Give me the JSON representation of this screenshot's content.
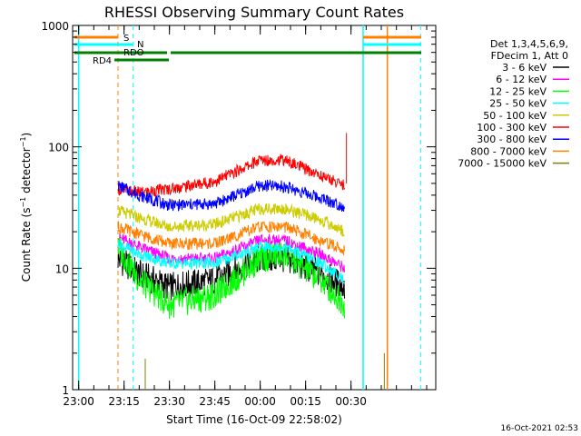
{
  "chart_data": {
    "type": "line",
    "title": "RHESSI Observing Summary Count Rates",
    "xlabel": "Start Time (16-Oct-09 22:58:02)",
    "ylabel": "Count Rate (s⁻¹ detector⁻¹)",
    "ylabel_main": "Count Rate (s",
    "ylabel_sup1": "−1",
    "ylabel_mid": " detector",
    "ylabel_sup2": "−1",
    "ylabel_end": ")",
    "x_ticks": [
      "23:00",
      "23:15",
      "23:30",
      "23:45",
      "00:00",
      "00:15",
      "00:30"
    ],
    "x_tick_minutes": [
      0,
      15,
      30,
      45,
      60,
      75,
      90
    ],
    "xlim_minutes": [
      -2,
      118
    ],
    "y_scale": "log",
    "ylim": [
      1,
      1000
    ],
    "y_ticks": [
      "1",
      "10",
      "100",
      "1000"
    ],
    "y_tick_values": [
      1,
      10,
      100,
      1000
    ],
    "legend_header_1": "Det 1,3,4,5,6,9,",
    "legend_header_2": "FDecim 1, Att 0",
    "timestamp": "16-Oct-2021 02:53",
    "series": [
      {
        "name": "3 - 6 keV",
        "color": "#000000",
        "min_values": [
          0,
          1.0
        ],
        "points": [
          [
            13,
            12
          ],
          [
            20,
            9
          ],
          [
            30,
            7
          ],
          [
            45,
            8
          ],
          [
            60,
            12
          ],
          [
            68,
            12
          ],
          [
            80,
            9
          ],
          [
            88,
            7
          ]
        ]
      },
      {
        "name": "6 - 12 keV",
        "color": "#ff00ff",
        "min_values": [
          0,
          1.0
        ],
        "points": [
          [
            13,
            18
          ],
          [
            20,
            15
          ],
          [
            30,
            12
          ],
          [
            45,
            12
          ],
          [
            60,
            17
          ],
          [
            68,
            17
          ],
          [
            80,
            13
          ],
          [
            88,
            10
          ]
        ]
      },
      {
        "name": "12 - 25 keV",
        "color": "#00ff00",
        "min_values": [
          0,
          1.0
        ],
        "points": [
          [
            13,
            15
          ],
          [
            20,
            8
          ],
          [
            30,
            5
          ],
          [
            45,
            6
          ],
          [
            60,
            12
          ],
          [
            68,
            13
          ],
          [
            80,
            8
          ],
          [
            88,
            5
          ]
        ]
      },
      {
        "name": "25 - 50 keV",
        "color": "#00ffff",
        "min_values": [
          0,
          1.0
        ],
        "points": [
          [
            13,
            16
          ],
          [
            20,
            13
          ],
          [
            30,
            11
          ],
          [
            45,
            11
          ],
          [
            60,
            15
          ],
          [
            68,
            15
          ],
          [
            80,
            11
          ],
          [
            88,
            8
          ]
        ]
      },
      {
        "name": "50 - 100 keV",
        "color": "#cccc00",
        "min_values": [
          0,
          1.0
        ],
        "points": [
          [
            13,
            30
          ],
          [
            20,
            26
          ],
          [
            30,
            22
          ],
          [
            45,
            23
          ],
          [
            60,
            31
          ],
          [
            68,
            31
          ],
          [
            80,
            25
          ],
          [
            88,
            20
          ]
        ]
      },
      {
        "name": "100 - 300 keV",
        "color": "#ff0000",
        "min_values": [
          0,
          1.0
        ],
        "points": [
          [
            13,
            45
          ],
          [
            20,
            42
          ],
          [
            30,
            45
          ],
          [
            45,
            52
          ],
          [
            60,
            78
          ],
          [
            68,
            78
          ],
          [
            80,
            58
          ],
          [
            88,
            48
          ]
        ]
      },
      {
        "name": "300 - 800 keV",
        "color": "#0000ff",
        "min_values": [
          0,
          1.0
        ],
        "points": [
          [
            13,
            48
          ],
          [
            20,
            40
          ],
          [
            30,
            33
          ],
          [
            45,
            34
          ],
          [
            60,
            48
          ],
          [
            68,
            47
          ],
          [
            80,
            38
          ],
          [
            88,
            32
          ]
        ]
      },
      {
        "name": "800 - 7000 keV",
        "color": "#ff8000",
        "min_values": [
          0,
          1.0
        ],
        "points": [
          [
            13,
            22
          ],
          [
            20,
            19
          ],
          [
            30,
            16
          ],
          [
            45,
            16
          ],
          [
            60,
            22
          ],
          [
            68,
            22
          ],
          [
            80,
            17
          ],
          [
            88,
            14
          ]
        ]
      },
      {
        "name": "7000 - 15000 keV",
        "color": "#808000",
        "min_values": [
          0,
          1.0
        ],
        "points": []
      }
    ],
    "flags": [
      {
        "label": "S",
        "color": "#ff8000"
      },
      {
        "label": "N",
        "color": "#00ffff"
      },
      {
        "label": "RDO",
        "color": "#008000"
      },
      {
        "label": "RD4",
        "color": "#008000"
      }
    ]
  }
}
